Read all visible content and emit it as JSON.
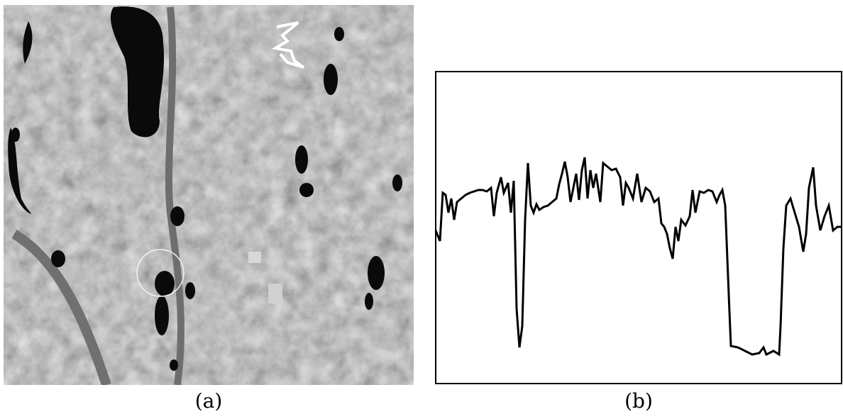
{
  "captions": [
    "(a)",
    "(b)"
  ],
  "chart_data": {
    "type": "line",
    "color": "#000000",
    "xlim": [
      0,
      572
    ],
    "ylim": [
      0,
      440
    ],
    "x": [
      0,
      6,
      10,
      14,
      18,
      22,
      26,
      30,
      36,
      42,
      48,
      54,
      60,
      66,
      72,
      78,
      82,
      86,
      92,
      96,
      102,
      106,
      110,
      114,
      118,
      122,
      126,
      130,
      134,
      138,
      142,
      146,
      152,
      158,
      164,
      170,
      174,
      178,
      182,
      186,
      190,
      194,
      198,
      202,
      206,
      210,
      214,
      218,
      222,
      226,
      232,
      236,
      242,
      248,
      254,
      260,
      264,
      268,
      272,
      278,
      284,
      290,
      296,
      302,
      308,
      314,
      318,
      322,
      326,
      330,
      334,
      338,
      342,
      346,
      352,
      358,
      362,
      366,
      372,
      378,
      384,
      390,
      396,
      400,
      404,
      408,
      414,
      416,
      426,
      436,
      446,
      456,
      462,
      466,
      476,
      484,
      486,
      490,
      494,
      500,
      506,
      512,
      518,
      522,
      526,
      532,
      536,
      542,
      548,
      554,
      560,
      566,
      572
    ],
    "values": [
      216,
      201,
      269,
      266,
      241,
      261,
      231,
      256,
      261,
      266,
      269,
      271,
      273,
      273,
      271,
      276,
      236,
      269,
      291,
      269,
      283,
      241,
      286,
      106,
      51,
      81,
      231,
      311,
      251,
      241,
      253,
      245,
      249,
      251,
      256,
      261,
      281,
      296,
      313,
      291,
      256,
      276,
      296,
      259,
      301,
      319,
      261,
      301,
      276,
      296,
      256,
      311,
      306,
      301,
      303,
      291,
      251,
      283,
      276,
      261,
      296,
      256,
      276,
      271,
      256,
      261,
      226,
      221,
      211,
      191,
      176,
      221,
      201,
      231,
      223,
      236,
      273,
      241,
      271,
      269,
      273,
      271,
      256,
      266,
      273,
      251,
      101,
      53,
      51,
      46,
      41,
      43,
      51,
      41,
      46,
      41,
      81,
      191,
      251,
      261,
      241,
      221,
      186,
      211,
      276,
      305,
      251,
      216,
      236,
      251,
      216,
      221,
      221
    ]
  }
}
